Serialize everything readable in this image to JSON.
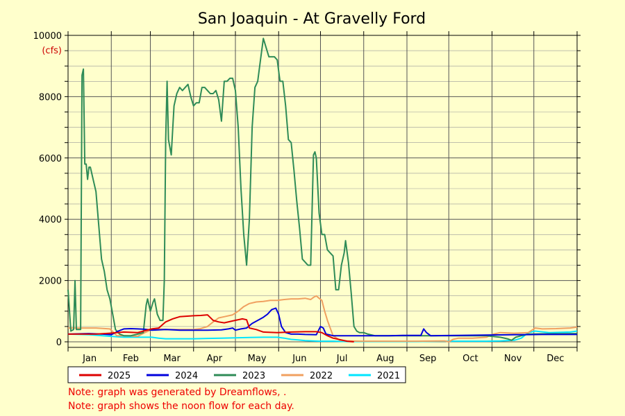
{
  "chart_data": {
    "type": "line",
    "title": "San Joaquin - At Gravelly Ford",
    "unit_label": "(cfs)",
    "ylim": [
      0,
      10000
    ],
    "y_ticks": [
      0,
      2000,
      4000,
      6000,
      8000,
      10000
    ],
    "y_tick_labels": [
      "0",
      "2000",
      "4000",
      "6000",
      "8000",
      "10000"
    ],
    "xlim": [
      0,
      365
    ],
    "x_tick_labels": [
      "Jan",
      "Feb",
      "Mar",
      "Apr",
      "May",
      "Jun",
      "Jul",
      "Aug",
      "Sep",
      "Oct",
      "Nov",
      "Dec"
    ],
    "grid": true,
    "legend_position": "bottom",
    "series": [
      {
        "name": "2025",
        "color": "#dd0000",
        "points": [
          [
            0,
            250
          ],
          [
            20,
            250
          ],
          [
            30,
            280
          ],
          [
            40,
            320
          ],
          [
            50,
            300
          ],
          [
            60,
            420
          ],
          [
            65,
            450
          ],
          [
            70,
            650
          ],
          [
            75,
            750
          ],
          [
            80,
            820
          ],
          [
            90,
            850
          ],
          [
            95,
            860
          ],
          [
            100,
            880
          ],
          [
            104,
            700
          ],
          [
            108,
            650
          ],
          [
            112,
            620
          ],
          [
            118,
            680
          ],
          [
            125,
            750
          ],
          [
            128,
            720
          ],
          [
            130,
            450
          ],
          [
            135,
            400
          ],
          [
            140,
            320
          ],
          [
            150,
            300
          ],
          [
            160,
            320
          ],
          [
            170,
            330
          ],
          [
            178,
            330
          ],
          [
            182,
            300
          ],
          [
            186,
            200
          ],
          [
            190,
            120
          ],
          [
            196,
            60
          ],
          [
            200,
            20
          ],
          [
            205,
            0
          ]
        ]
      },
      {
        "name": "2024",
        "color": "#0000dd",
        "points": [
          [
            0,
            250
          ],
          [
            15,
            270
          ],
          [
            25,
            250
          ],
          [
            31,
            230
          ],
          [
            36,
            350
          ],
          [
            40,
            420
          ],
          [
            45,
            430
          ],
          [
            50,
            420
          ],
          [
            55,
            410
          ],
          [
            60,
            380
          ],
          [
            70,
            400
          ],
          [
            80,
            380
          ],
          [
            90,
            380
          ],
          [
            100,
            380
          ],
          [
            110,
            390
          ],
          [
            115,
            420
          ],
          [
            118,
            450
          ],
          [
            120,
            380
          ],
          [
            124,
            420
          ],
          [
            128,
            450
          ],
          [
            132,
            600
          ],
          [
            136,
            700
          ],
          [
            140,
            800
          ],
          [
            143,
            900
          ],
          [
            146,
            1050
          ],
          [
            149,
            1100
          ],
          [
            151,
            900
          ],
          [
            153,
            500
          ],
          [
            156,
            300
          ],
          [
            160,
            250
          ],
          [
            165,
            250
          ],
          [
            170,
            240
          ],
          [
            178,
            230
          ],
          [
            181,
            500
          ],
          [
            183,
            450
          ],
          [
            185,
            250
          ],
          [
            190,
            200
          ],
          [
            200,
            200
          ],
          [
            210,
            200
          ],
          [
            220,
            200
          ],
          [
            230,
            200
          ],
          [
            240,
            210
          ],
          [
            253,
            210
          ],
          [
            255,
            420
          ],
          [
            257,
            300
          ],
          [
            260,
            200
          ],
          [
            280,
            210
          ],
          [
            300,
            220
          ],
          [
            320,
            230
          ],
          [
            340,
            240
          ],
          [
            365,
            240
          ]
        ]
      },
      {
        "name": "2023",
        "color": "#2e8b57",
        "points": [
          [
            0,
            1700
          ],
          [
            2,
            350
          ],
          [
            4,
            400
          ],
          [
            5,
            2000
          ],
          [
            6,
            400
          ],
          [
            9,
            400
          ],
          [
            10,
            8700
          ],
          [
            11,
            8900
          ],
          [
            12,
            5800
          ],
          [
            13,
            5800
          ],
          [
            14,
            5300
          ],
          [
            15,
            5700
          ],
          [
            16,
            5700
          ],
          [
            18,
            5300
          ],
          [
            20,
            4900
          ],
          [
            22,
            3800
          ],
          [
            24,
            2700
          ],
          [
            26,
            2300
          ],
          [
            28,
            1700
          ],
          [
            30,
            1400
          ],
          [
            32,
            900
          ],
          [
            34,
            400
          ],
          [
            37,
            250
          ],
          [
            40,
            200
          ],
          [
            45,
            200
          ],
          [
            50,
            250
          ],
          [
            54,
            300
          ],
          [
            56,
            1200
          ],
          [
            57,
            1400
          ],
          [
            59,
            1000
          ],
          [
            61,
            1300
          ],
          [
            62,
            1400
          ],
          [
            64,
            900
          ],
          [
            66,
            700
          ],
          [
            68,
            700
          ],
          [
            69,
            2000
          ],
          [
            70,
            6600
          ],
          [
            71,
            8500
          ],
          [
            72,
            6600
          ],
          [
            74,
            6100
          ],
          [
            76,
            7700
          ],
          [
            78,
            8100
          ],
          [
            80,
            8300
          ],
          [
            82,
            8200
          ],
          [
            84,
            8300
          ],
          [
            86,
            8400
          ],
          [
            88,
            8000
          ],
          [
            90,
            7700
          ],
          [
            92,
            7800
          ],
          [
            94,
            7800
          ],
          [
            96,
            8300
          ],
          [
            98,
            8300
          ],
          [
            100,
            8200
          ],
          [
            102,
            8100
          ],
          [
            104,
            8100
          ],
          [
            106,
            8200
          ],
          [
            108,
            7900
          ],
          [
            110,
            7200
          ],
          [
            112,
            8500
          ],
          [
            114,
            8500
          ],
          [
            116,
            8600
          ],
          [
            118,
            8600
          ],
          [
            120,
            8200
          ],
          [
            122,
            7000
          ],
          [
            124,
            5000
          ],
          [
            126,
            3500
          ],
          [
            128,
            2500
          ],
          [
            130,
            4000
          ],
          [
            132,
            7000
          ],
          [
            134,
            8300
          ],
          [
            136,
            8500
          ],
          [
            138,
            9200
          ],
          [
            140,
            9900
          ],
          [
            142,
            9600
          ],
          [
            144,
            9300
          ],
          [
            146,
            9300
          ],
          [
            148,
            9300
          ],
          [
            150,
            9200
          ],
          [
            152,
            8500
          ],
          [
            154,
            8500
          ],
          [
            156,
            7700
          ],
          [
            158,
            6600
          ],
          [
            160,
            6500
          ],
          [
            162,
            5600
          ],
          [
            164,
            4600
          ],
          [
            166,
            3700
          ],
          [
            168,
            2700
          ],
          [
            170,
            2600
          ],
          [
            172,
            2500
          ],
          [
            174,
            2500
          ],
          [
            176,
            6100
          ],
          [
            177,
            6200
          ],
          [
            178,
            6000
          ],
          [
            180,
            4200
          ],
          [
            182,
            3500
          ],
          [
            184,
            3500
          ],
          [
            186,
            3000
          ],
          [
            188,
            2900
          ],
          [
            190,
            2800
          ],
          [
            192,
            1700
          ],
          [
            194,
            1700
          ],
          [
            196,
            2500
          ],
          [
            198,
            2900
          ],
          [
            199,
            3300
          ],
          [
            201,
            2600
          ],
          [
            203,
            1600
          ],
          [
            205,
            500
          ],
          [
            207,
            350
          ],
          [
            209,
            300
          ],
          [
            212,
            300
          ],
          [
            215,
            250
          ],
          [
            220,
            200
          ],
          [
            230,
            200
          ],
          [
            250,
            200
          ],
          [
            270,
            200
          ],
          [
            280,
            200
          ],
          [
            300,
            200
          ],
          [
            310,
            150
          ],
          [
            315,
            100
          ],
          [
            318,
            50
          ],
          [
            321,
            150
          ],
          [
            325,
            200
          ],
          [
            330,
            250
          ],
          [
            340,
            260
          ],
          [
            365,
            270
          ]
        ]
      },
      {
        "name": "2022",
        "color": "#f0a060",
        "points": [
          [
            0,
            450
          ],
          [
            10,
            450
          ],
          [
            20,
            450
          ],
          [
            30,
            420
          ],
          [
            35,
            200
          ],
          [
            40,
            200
          ],
          [
            50,
            180
          ],
          [
            55,
            300
          ],
          [
            60,
            400
          ],
          [
            65,
            420
          ],
          [
            70,
            400
          ],
          [
            80,
            400
          ],
          [
            90,
            400
          ],
          [
            95,
            430
          ],
          [
            100,
            500
          ],
          [
            104,
            650
          ],
          [
            108,
            780
          ],
          [
            112,
            820
          ],
          [
            118,
            880
          ],
          [
            122,
            1000
          ],
          [
            126,
            1150
          ],
          [
            130,
            1250
          ],
          [
            135,
            1300
          ],
          [
            140,
            1320
          ],
          [
            145,
            1350
          ],
          [
            150,
            1350
          ],
          [
            155,
            1380
          ],
          [
            160,
            1400
          ],
          [
            165,
            1400
          ],
          [
            170,
            1420
          ],
          [
            174,
            1380
          ],
          [
            176,
            1450
          ],
          [
            178,
            1500
          ],
          [
            180,
            1420
          ],
          [
            182,
            1350
          ],
          [
            184,
            1000
          ],
          [
            186,
            700
          ],
          [
            188,
            450
          ],
          [
            190,
            200
          ],
          [
            195,
            50
          ],
          [
            200,
            30
          ],
          [
            210,
            20
          ],
          [
            220,
            20
          ],
          [
            230,
            20
          ],
          [
            250,
            20
          ],
          [
            270,
            30
          ],
          [
            273,
            0
          ],
          [
            276,
            80
          ],
          [
            280,
            120
          ],
          [
            290,
            120
          ],
          [
            300,
            150
          ],
          [
            305,
            250
          ],
          [
            310,
            300
          ],
          [
            320,
            280
          ],
          [
            330,
            300
          ],
          [
            335,
            450
          ],
          [
            340,
            420
          ],
          [
            350,
            430
          ],
          [
            360,
            450
          ],
          [
            365,
            480
          ]
        ]
      },
      {
        "name": "2021",
        "color": "#00e5ff",
        "points": [
          [
            0,
            250
          ],
          [
            15,
            230
          ],
          [
            30,
            180
          ],
          [
            40,
            150
          ],
          [
            50,
            150
          ],
          [
            60,
            150
          ],
          [
            65,
            120
          ],
          [
            70,
            100
          ],
          [
            80,
            100
          ],
          [
            90,
            100
          ],
          [
            100,
            110
          ],
          [
            110,
            120
          ],
          [
            120,
            130
          ],
          [
            130,
            140
          ],
          [
            140,
            150
          ],
          [
            150,
            150
          ],
          [
            155,
            120
          ],
          [
            160,
            80
          ],
          [
            165,
            60
          ],
          [
            170,
            40
          ],
          [
            180,
            20
          ],
          [
            190,
            20
          ],
          [
            200,
            10
          ],
          [
            220,
            10
          ],
          [
            250,
            10
          ],
          [
            270,
            20
          ],
          [
            280,
            20
          ],
          [
            300,
            20
          ],
          [
            310,
            30
          ],
          [
            320,
            50
          ],
          [
            325,
            120
          ],
          [
            330,
            300
          ],
          [
            335,
            350
          ],
          [
            345,
            300
          ],
          [
            360,
            320
          ],
          [
            365,
            350
          ]
        ]
      }
    ]
  },
  "notes": [
    "Note: graph was generated by Dreamflows, .",
    "Note: graph shows the noon flow for each day."
  ]
}
